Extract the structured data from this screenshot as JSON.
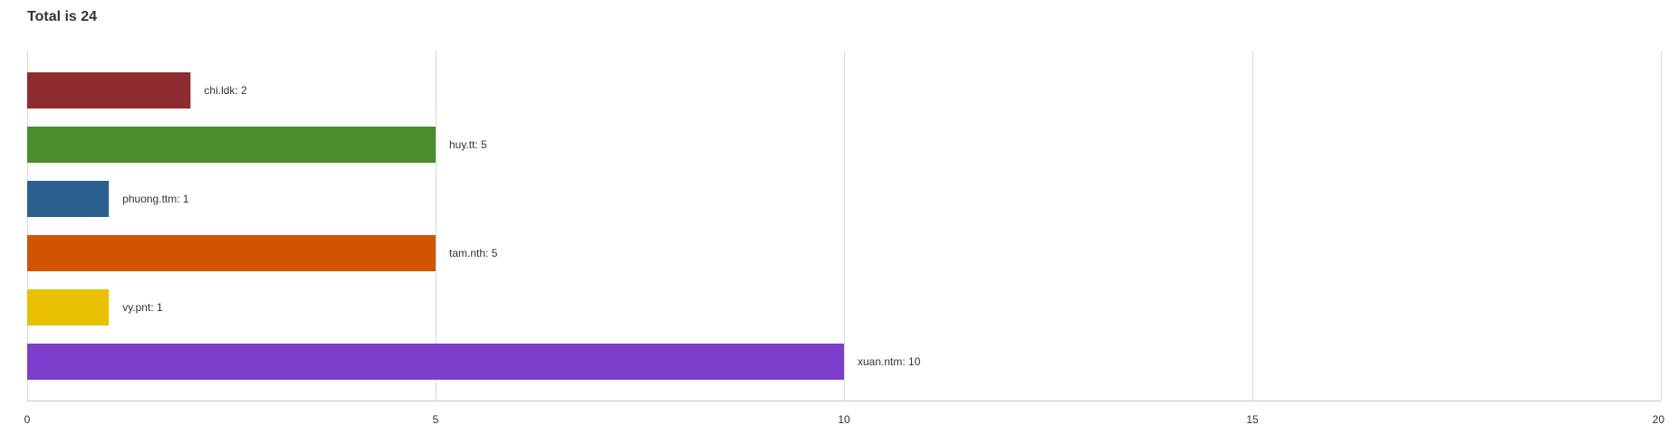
{
  "chart_data": {
    "type": "bar",
    "orientation": "horizontal",
    "title": "Total is 24",
    "categories": [
      "chi.ldk",
      "huy.tt",
      "phuong.ttm",
      "tam.nth",
      "vy.pnt",
      "xuan.ntm"
    ],
    "values": [
      2,
      5,
      1,
      5,
      1,
      10
    ],
    "data_labels": [
      "chi.ldk: 2",
      "huy.tt: 5",
      "phuong.ttm: 1",
      "tam.nth: 5",
      "vy.pnt: 1",
      "xuan.ntm: 10"
    ],
    "colors": [
      "#8e2c2f",
      "#4b8d2b",
      "#2a5f8f",
      "#d15500",
      "#e8c000",
      "#7f3dcc"
    ],
    "xlim": [
      0,
      20
    ],
    "x_ticks": [
      "0",
      "5",
      "10",
      "15",
      "20"
    ],
    "x_tick_values": [
      0,
      5,
      10,
      15,
      20
    ],
    "grid": true,
    "legend": "none"
  }
}
